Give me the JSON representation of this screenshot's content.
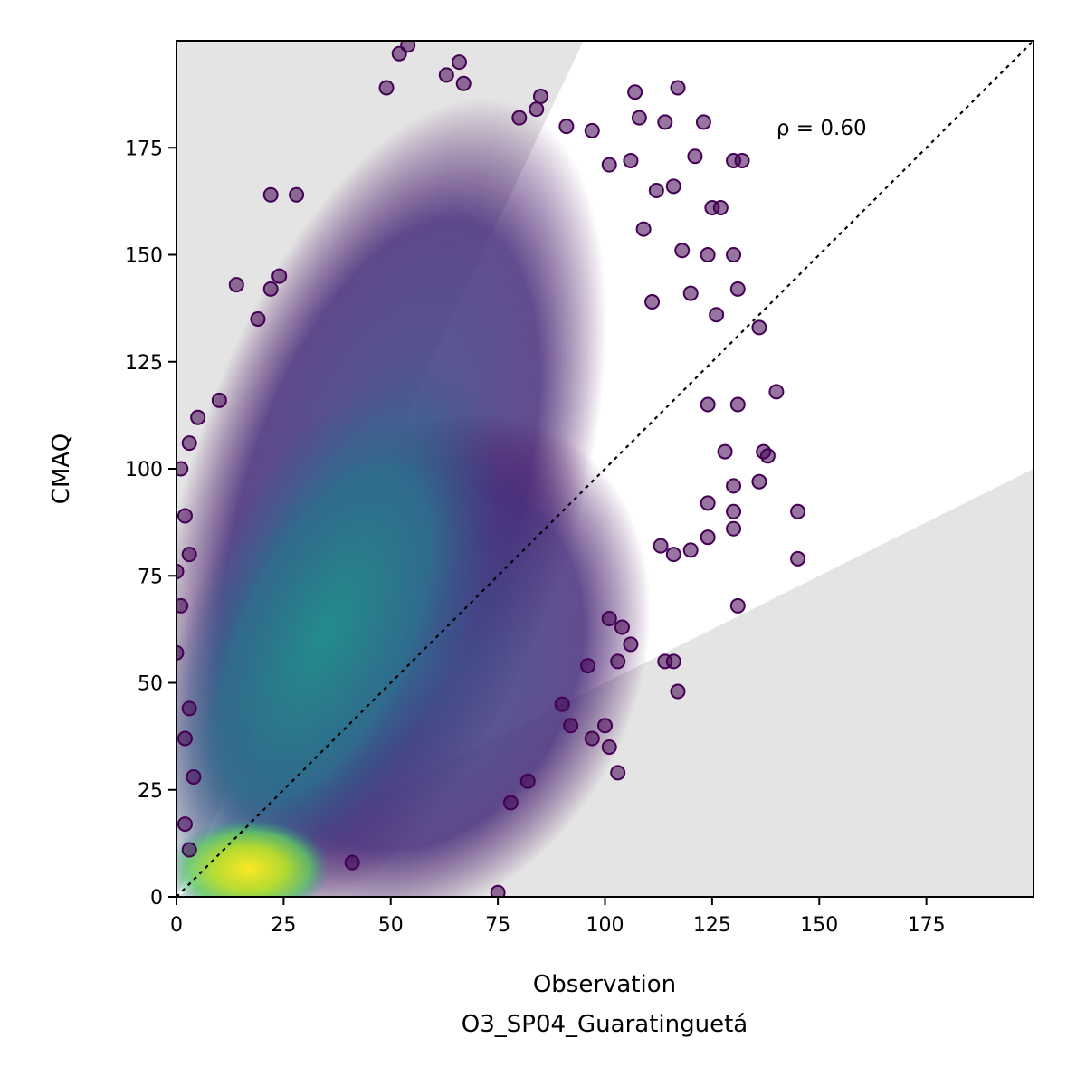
{
  "chart_data": {
    "type": "scatter",
    "title": "",
    "xlabel": "Observation",
    "xlabel_sub": "O3_SP04_Guaratinguetá",
    "ylabel": "CMAQ",
    "xlim": [
      0,
      200
    ],
    "ylim": [
      0,
      200
    ],
    "xticks": [
      "0",
      "25",
      "50",
      "75",
      "100",
      "125",
      "150",
      "175"
    ],
    "yticks": [
      "0",
      "25",
      "50",
      "75",
      "100",
      "125",
      "150",
      "175"
    ],
    "xtick_values": [
      0,
      25,
      50,
      75,
      100,
      125,
      150,
      175
    ],
    "ytick_values": [
      0,
      25,
      50,
      75,
      100,
      125,
      150,
      175
    ],
    "grid": false,
    "annotation": "ρ = 0.60",
    "annotation_position": [
      140,
      178
    ],
    "reference_line": {
      "style": "dotted",
      "color": "#000000",
      "from": [
        0,
        0
      ],
      "to": [
        200,
        200
      ]
    },
    "shaded_regions": {
      "color": "#e4e4e4",
      "upper": [
        [
          0,
          0
        ],
        [
          0,
          200
        ],
        [
          95,
          200
        ]
      ],
      "lower": [
        [
          0,
          0
        ],
        [
          200,
          0
        ],
        [
          200,
          100
        ]
      ]
    },
    "colormap": [
      "#440154",
      "#3b528b",
      "#21918c",
      "#5ec962",
      "#fde725"
    ],
    "density_core": {
      "x": 16,
      "y": 5
    },
    "outliers": [
      [
        54,
        199
      ],
      [
        52,
        197
      ],
      [
        63,
        192
      ],
      [
        66,
        195
      ],
      [
        49,
        189
      ],
      [
        67,
        190
      ],
      [
        85,
        187
      ],
      [
        107,
        188
      ],
      [
        117,
        189
      ],
      [
        80,
        182
      ],
      [
        84,
        184
      ],
      [
        108,
        182
      ],
      [
        114,
        181
      ],
      [
        123,
        181
      ],
      [
        97,
        179
      ],
      [
        91,
        180
      ],
      [
        130,
        172
      ],
      [
        132,
        172
      ],
      [
        106,
        172
      ],
      [
        101,
        171
      ],
      [
        121,
        173
      ],
      [
        116,
        166
      ],
      [
        112,
        165
      ],
      [
        22,
        164
      ],
      [
        28,
        164
      ],
      [
        127,
        161
      ],
      [
        109,
        156
      ],
      [
        125,
        161
      ],
      [
        19,
        135
      ],
      [
        22,
        142
      ],
      [
        24,
        145
      ],
      [
        14,
        143
      ],
      [
        120,
        141
      ],
      [
        124,
        150
      ],
      [
        130,
        150
      ],
      [
        118,
        151
      ],
      [
        131,
        142
      ],
      [
        111,
        139
      ],
      [
        126,
        136
      ],
      [
        136,
        133
      ],
      [
        140,
        118
      ],
      [
        131,
        115
      ],
      [
        124,
        115
      ],
      [
        128,
        104
      ],
      [
        137,
        104
      ],
      [
        138,
        103
      ],
      [
        136,
        97
      ],
      [
        130,
        96
      ],
      [
        124,
        92
      ],
      [
        130,
        90
      ],
      [
        145,
        90
      ],
      [
        145,
        79
      ],
      [
        130,
        86
      ],
      [
        124,
        84
      ],
      [
        131,
        68
      ],
      [
        116,
        80
      ],
      [
        120,
        81
      ],
      [
        113,
        82
      ],
      [
        114,
        55
      ],
      [
        116,
        55
      ],
      [
        117,
        48
      ],
      [
        101,
        65
      ],
      [
        103,
        55
      ],
      [
        104,
        63
      ],
      [
        106,
        59
      ],
      [
        96,
        54
      ],
      [
        90,
        45
      ],
      [
        92,
        40
      ],
      [
        97,
        37
      ],
      [
        101,
        35
      ],
      [
        100,
        40
      ],
      [
        103,
        29
      ],
      [
        78,
        22
      ],
      [
        82,
        27
      ],
      [
        75,
        1
      ],
      [
        10,
        116
      ],
      [
        5,
        112
      ],
      [
        3,
        106
      ],
      [
        1,
        100
      ],
      [
        2,
        89
      ],
      [
        3,
        80
      ],
      [
        0,
        76
      ],
      [
        1,
        68
      ],
      [
        0,
        57
      ],
      [
        3,
        44
      ],
      [
        2,
        37
      ],
      [
        4,
        28
      ],
      [
        2,
        17
      ],
      [
        3,
        11
      ],
      [
        41,
        8
      ]
    ]
  }
}
